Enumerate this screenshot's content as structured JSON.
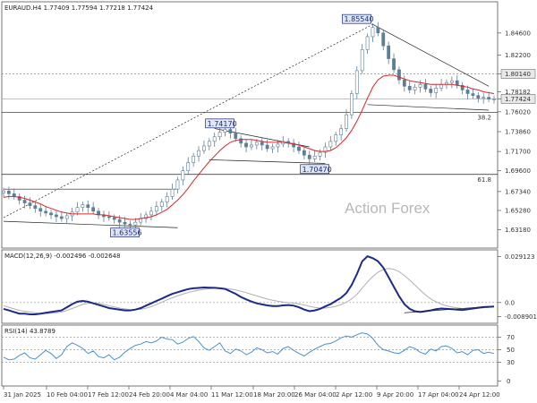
{
  "colors": {
    "candle": "#5e7e96",
    "ma": "#d62728",
    "macd": "#1c2a8a",
    "signal": "#b0b0b0",
    "rsi": "#4a90d0",
    "trend": "#222222",
    "grid_dotted": "#9a9a9a",
    "label_box_fill": "#dfe6f5",
    "label_box_border": "#1c2a7a",
    "price_tag": "#e8e8e8"
  },
  "chart_data": [
    {
      "type": "candlestick",
      "title": "EURAUD.H4  1.77409 1.77594 1.77218 1.77424",
      "watermark": "Action Forex",
      "ylim": [
        1.6138,
        1.878
      ],
      "y_ticks": [
        "1.84600",
        "1.82200",
        "1.80140",
        "1.78182",
        "1.77424",
        "1.76020",
        "1.73860",
        "1.71700",
        "1.69600",
        "1.67340",
        "1.65280",
        "1.63180"
      ],
      "price_tags": [
        "1.80140",
        "1.77424"
      ],
      "x_ticks": [
        "31 Jan 2025",
        "10 Feb 04:00",
        "17 Feb 12:00",
        "24 Feb 20:00",
        "4 Mar 04:00",
        "11 Mar 12:00",
        "18 Mar 20:00",
        "26 Mar 04:00",
        "2 Apr 12:00",
        "9 Apr 20:00",
        "17 Apr 04:00",
        "24 Apr 12:00"
      ],
      "labels": [
        {
          "text": "1.85540",
          "value": 1.8554
        },
        {
          "text": "1.74170",
          "value": 1.7417
        },
        {
          "text": "1.70470",
          "value": 1.7047
        },
        {
          "text": "1.63556",
          "value": 1.63556
        }
      ],
      "fib_labels": [
        "38.2",
        "61.8"
      ],
      "close_series": [
        1.674,
        1.671,
        1.668,
        1.664,
        1.661,
        1.658,
        1.655,
        1.652,
        1.65,
        1.648,
        1.646,
        1.644,
        1.647,
        1.651,
        1.656,
        1.659,
        1.656,
        1.652,
        1.648,
        1.646,
        1.645,
        1.643,
        1.64,
        1.638,
        1.637,
        1.64,
        1.644,
        1.648,
        1.652,
        1.657,
        1.662,
        1.668,
        1.676,
        1.686,
        1.696,
        1.705,
        1.712,
        1.718,
        1.723,
        1.728,
        1.733,
        1.738,
        1.741,
        1.737,
        1.731,
        1.726,
        1.722,
        1.724,
        1.727,
        1.724,
        1.72,
        1.722,
        1.725,
        1.728,
        1.726,
        1.722,
        1.718,
        1.713,
        1.709,
        1.712,
        1.716,
        1.722,
        1.728,
        1.735,
        1.742,
        1.757,
        1.78,
        1.805,
        1.828,
        1.842,
        1.852,
        1.846,
        1.832,
        1.818,
        1.806,
        1.795,
        1.788,
        1.784,
        1.787,
        1.79,
        1.785,
        1.781,
        1.786,
        1.79,
        1.792,
        1.794,
        1.789,
        1.784,
        1.78,
        1.778,
        1.775,
        1.776,
        1.774,
        1.7742
      ],
      "ma_series": [
        1.667,
        1.668,
        1.668,
        1.667,
        1.666,
        1.664,
        1.662,
        1.66,
        1.657,
        1.655,
        1.653,
        1.651,
        1.65,
        1.649,
        1.649,
        1.649,
        1.649,
        1.649,
        1.648,
        1.648,
        1.647,
        1.646,
        1.645,
        1.644,
        1.643,
        1.643,
        1.644,
        1.645,
        1.646,
        1.648,
        1.651,
        1.654,
        1.659,
        1.664,
        1.67,
        1.677,
        1.685,
        1.692,
        1.699,
        1.706,
        1.712,
        1.718,
        1.723,
        1.727,
        1.729,
        1.73,
        1.73,
        1.73,
        1.729,
        1.728,
        1.727,
        1.727,
        1.727,
        1.727,
        1.726,
        1.725,
        1.724,
        1.722,
        1.72,
        1.718,
        1.717,
        1.717,
        1.718,
        1.721,
        1.726,
        1.732,
        1.74,
        1.75,
        1.762,
        1.775,
        1.787,
        1.795,
        1.799,
        1.8,
        1.8,
        1.798,
        1.796,
        1.794,
        1.793,
        1.792,
        1.791,
        1.79,
        1.79,
        1.79,
        1.79,
        1.79,
        1.789,
        1.788,
        1.787,
        1.785,
        1.784,
        1.782,
        1.781,
        1.78
      ]
    },
    {
      "type": "line",
      "title": "MACD(12,26,9) -0.002496 -0.002648",
      "ylim": [
        -0.012,
        0.031
      ],
      "y_ticks": [
        "0.029123",
        "0.0",
        "-0.008901"
      ],
      "macd_series": [
        -0.004,
        -0.005,
        -0.006,
        -0.007,
        -0.007,
        -0.0075,
        -0.0075,
        -0.007,
        -0.0065,
        -0.006,
        -0.0055,
        -0.005,
        -0.003,
        -0.001,
        0.0005,
        0.001,
        0.0005,
        -0.0005,
        -0.0015,
        -0.0025,
        -0.0035,
        -0.004,
        -0.0045,
        -0.005,
        -0.005,
        -0.0045,
        -0.0035,
        -0.002,
        -0.0005,
        0.001,
        0.0025,
        0.004,
        0.0055,
        0.0065,
        0.0075,
        0.0085,
        0.009,
        0.0092,
        0.0095,
        0.0094,
        0.0093,
        0.009,
        0.0086,
        0.007,
        0.0055,
        0.0035,
        0.002,
        0.0006,
        -0.0005,
        -0.0012,
        -0.0018,
        -0.0022,
        -0.0022,
        -0.0018,
        -0.0016,
        -0.002,
        -0.003,
        -0.0045,
        -0.0055,
        -0.005,
        -0.004,
        -0.0025,
        -0.001,
        0.001,
        0.003,
        0.006,
        0.011,
        0.018,
        0.026,
        0.0292,
        0.028,
        0.026,
        0.022,
        0.016,
        0.01,
        0.004,
        -0.001,
        -0.004,
        -0.0055,
        -0.006,
        -0.0055,
        -0.005,
        -0.0042,
        -0.0038,
        -0.004,
        -0.0042,
        -0.0045,
        -0.0047,
        -0.0043,
        -0.0038,
        -0.0033,
        -0.0029,
        -0.0027,
        -0.002496
      ],
      "signal_series": [
        -0.002,
        -0.003,
        -0.004,
        -0.005,
        -0.0055,
        -0.006,
        -0.0065,
        -0.007,
        -0.007,
        -0.0068,
        -0.0065,
        -0.006,
        -0.005,
        -0.0038,
        -0.0025,
        -0.0012,
        -0.0005,
        -0.0002,
        -0.0005,
        -0.0012,
        -0.002,
        -0.0028,
        -0.0035,
        -0.004,
        -0.0045,
        -0.0046,
        -0.0043,
        -0.0036,
        -0.0026,
        -0.0013,
        0.0002,
        0.0017,
        0.003,
        0.0042,
        0.0053,
        0.0063,
        0.0071,
        0.0078,
        0.0083,
        0.0087,
        0.009,
        0.009,
        0.0089,
        0.0085,
        0.0079,
        0.0071,
        0.0062,
        0.0052,
        0.0042,
        0.0032,
        0.0022,
        0.0014,
        0.0008,
        0.0003,
        -0.0001,
        -0.0004,
        -0.0009,
        -0.0016,
        -0.0024,
        -0.0031,
        -0.0035,
        -0.0035,
        -0.0031,
        -0.0024,
        -0.0013,
        0.0002,
        0.0023,
        0.0052,
        0.0091,
        0.013,
        0.0164,
        0.0191,
        0.0209,
        0.0215,
        0.021,
        0.0195,
        0.0171,
        0.0142,
        0.011,
        0.0078,
        0.0048,
        0.0023,
        0.0004,
        -0.001,
        -0.0021,
        -0.0029,
        -0.0034,
        -0.0038,
        -0.0039,
        -0.0039,
        -0.0037,
        -0.0034,
        -0.003,
        -0.002648
      ]
    },
    {
      "type": "line",
      "title": "RSI(14) 43.8789",
      "ylim": [
        -5,
        85
      ],
      "y_ticks": [
        "70",
        "50",
        "30",
        "0"
      ],
      "rsi_series": [
        38,
        34,
        35,
        41,
        45,
        37,
        35,
        42,
        49,
        44,
        36,
        42,
        55,
        61,
        57,
        52,
        44,
        48,
        39,
        37,
        42,
        34,
        38,
        46,
        52,
        57,
        59,
        63,
        61,
        64,
        70,
        67,
        66,
        59,
        62,
        68,
        71,
        63,
        53,
        49,
        55,
        61,
        48,
        44,
        51,
        48,
        42,
        46,
        53,
        50,
        45,
        47,
        43,
        52,
        55,
        49,
        44,
        40,
        46,
        51,
        55,
        59,
        60,
        64,
        69,
        72,
        70,
        74,
        77,
        75,
        68,
        57,
        50,
        48,
        45,
        44,
        49,
        55,
        52,
        46,
        43,
        51,
        48,
        55,
        56,
        52,
        45,
        47,
        42,
        49,
        50,
        44,
        46,
        43.8789
      ]
    }
  ]
}
